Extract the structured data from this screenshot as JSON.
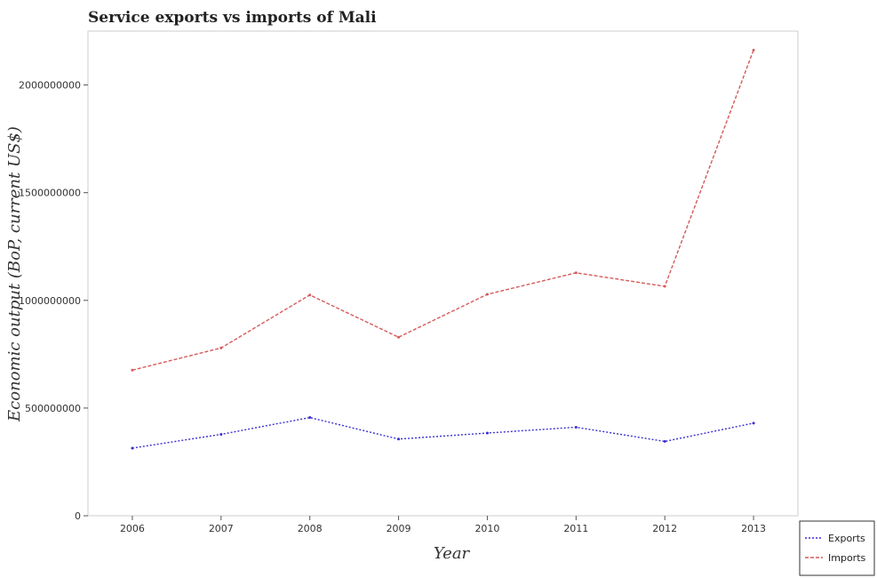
{
  "chart_data": {
    "type": "line",
    "title": "Service exports vs imports of Mali",
    "xlabel": "Year",
    "ylabel": "Economic output (BoP, current US$)",
    "categories": [
      "2006",
      "2007",
      "2008",
      "2009",
      "2010",
      "2011",
      "2012",
      "2013"
    ],
    "ylim": [
      0,
      2250000000
    ],
    "yticks": [
      0,
      500000000,
      1000000000,
      1500000000,
      2000000000
    ],
    "ytick_labels": [
      "0",
      "500000000",
      "1000000000",
      "1500000000",
      "2000000000"
    ],
    "grid": false,
    "legend_position": "bottom-right",
    "series": [
      {
        "name": "Exports",
        "color": "#3b2fd0",
        "values": [
          314000000,
          378000000,
          456000000,
          356000000,
          384000000,
          411000000,
          345000000,
          430000000
        ]
      },
      {
        "name": "Imports",
        "color": "#d65a5a",
        "values": [
          676000000,
          779000000,
          1025000000,
          829000000,
          1028000000,
          1128000000,
          1065000000,
          2162000000
        ]
      }
    ]
  }
}
